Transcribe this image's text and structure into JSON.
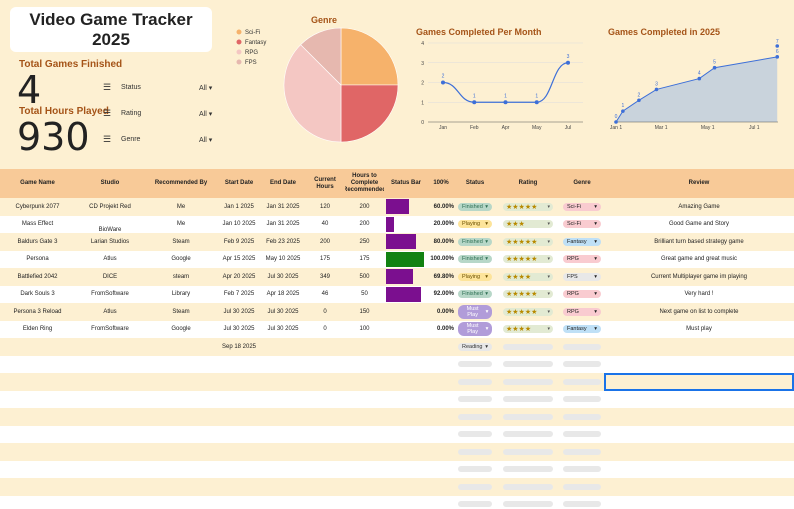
{
  "title": {
    "line1": "Video Game Tracker",
    "line2": "2025"
  },
  "stats": {
    "completed_label": "Total Games Finished",
    "completed_value": "4",
    "hours_label": "Total Hours Played",
    "hours_value": "930"
  },
  "filters": [
    {
      "label": "Status",
      "value": "All"
    },
    {
      "label": "Rating",
      "value": "All"
    },
    {
      "label": "Genre",
      "value": "All"
    }
  ],
  "genre_chart": {
    "title": "Genre",
    "legend": [
      {
        "name": "Sci-Fi",
        "color": "#f6b26b"
      },
      {
        "name": "Fantasy",
        "color": "#e06666"
      },
      {
        "name": "RPG",
        "color": "#f4c7c3"
      },
      {
        "name": "FPS",
        "color": "#e6b8af"
      }
    ]
  },
  "chart_data": [
    {
      "type": "pie",
      "title": "Genre",
      "categories": [
        "Sci-Fi",
        "Fantasy",
        "RPG",
        "FPS"
      ],
      "values": [
        2,
        2,
        3,
        1
      ],
      "colors": [
        "#f6b26b",
        "#e06666",
        "#f4c7c3",
        "#e6b8af"
      ]
    },
    {
      "type": "line",
      "title": "Games Completed Per Month",
      "x": [
        "Jan",
        "Feb",
        "Apr",
        "May",
        "Jul"
      ],
      "y": [
        2,
        1,
        1,
        1,
        3
      ],
      "ylim": [
        0,
        4
      ],
      "yticks": [
        "0",
        "1",
        "2",
        "3",
        "4"
      ],
      "color": "#3d6fd8"
    },
    {
      "type": "area",
      "title": "Games Completed in 2025",
      "x": [
        "Jan 1",
        "Jan 10",
        "Jan 31",
        "Feb 23",
        "Apr 20",
        "May 10",
        "Jul 31"
      ],
      "y": [
        0,
        1,
        2,
        3,
        4,
        5,
        6
      ],
      "labels": [
        "0",
        "1",
        "2",
        "3",
        "4",
        "5",
        "6"
      ],
      "xticks": [
        "Jan 1",
        "Mar 1",
        "May 1",
        "Jul 1"
      ],
      "extra_point_label": "7",
      "color": "#3d6fd8",
      "fill": "#c9d3dc"
    }
  ],
  "table": {
    "headers": [
      "Game Name",
      "Studio",
      "Recommended By",
      "Start Date",
      "End Date",
      "Current Hours",
      "Hours to Complete (Recommended)",
      "Status Bar",
      "100%",
      "Status",
      "Rating",
      "Genre",
      "Review"
    ],
    "rows": [
      {
        "name": "Cyberpunk 2077",
        "studio": "CD Projekt Red",
        "rec": "Me",
        "start": "Jan 1 2025",
        "end": "Jan 31 2025",
        "cur": "120",
        "total": "200",
        "bar": 0.6,
        "barcolor": "#7b0f8f",
        "pct": "60.00%",
        "status": "Finished",
        "rating": "★★★★★",
        "genre": "Sci-Fi",
        "review": "Amazing Game"
      },
      {
        "name": "Mass Effect",
        "studio": "BioWare",
        "rec": "Me",
        "start": "Jan 10 2025",
        "end": "Jan 31 2025",
        "cur": "40",
        "total": "200",
        "bar": 0.2,
        "barcolor": "#7b0f8f",
        "pct": "20.00%",
        "status": "Playing",
        "rating": "★★★",
        "genre": "Sci-Fi",
        "review": "Good Game and Story"
      },
      {
        "name": "Baldurs Gate 3",
        "studio": "Larian Studios",
        "rec": "Steam",
        "start": "Feb 9 2025",
        "end": "Feb 23 2025",
        "cur": "200",
        "total": "250",
        "bar": 0.8,
        "barcolor": "#7b0f8f",
        "pct": "80.00%",
        "status": "Finished",
        "rating": "★★★★★",
        "genre": "Fantasy",
        "review": "Brilliant turn based strategy game"
      },
      {
        "name": "Persona",
        "studio": "Atlus",
        "rec": "Google",
        "start": "Apr 15 2025",
        "end": "May 10 2025",
        "cur": "175",
        "total": "175",
        "bar": 1.0,
        "barcolor": "#128212",
        "pct": "100.00%",
        "status": "Finished",
        "rating": "★★★★★",
        "genre": "RPG",
        "review": "Great game and great music"
      },
      {
        "name": "Battlefied 2042",
        "studio": "DICE",
        "rec": "steam",
        "start": "Apr 20 2025",
        "end": "Jul 30 2025",
        "cur": "349",
        "total": "500",
        "bar": 0.698,
        "barcolor": "#7b0f8f",
        "pct": "69.80%",
        "status": "Playing",
        "rating": "★★★★",
        "genre": "FPS",
        "review": "Current Multiplayer game im playing"
      },
      {
        "name": "Dark Souls 3",
        "studio": "FromSoftware",
        "rec": "Library",
        "start": "Feb 7 2025",
        "end": "Apr 18 2025",
        "cur": "46",
        "total": "50",
        "bar": 0.92,
        "barcolor": "#7b0f8f",
        "pct": "92.00%",
        "status": "Finished",
        "rating": "★★★★★",
        "genre": "RPG",
        "review": "Very hard !"
      },
      {
        "name": "Persona 3 Reload",
        "studio": "Atlus",
        "rec": "Steam",
        "start": "Jul 30 2025",
        "end": "Jul 30 2025",
        "cur": "0",
        "total": "150",
        "bar": 0,
        "barcolor": "#7b0f8f",
        "pct": "0.00%",
        "status": "Must Play",
        "rating": "★★★★★",
        "genre": "RPG",
        "review": "Next game on list to complete"
      },
      {
        "name": "Elden Ring",
        "studio": "FromSoftware",
        "rec": "Google",
        "start": "Jul 30 2025",
        "end": "Jul 30 2025",
        "cur": "0",
        "total": "100",
        "bar": 0,
        "barcolor": "#7b0f8f",
        "pct": "0.00%",
        "status": "Must Play",
        "rating": "★★★★",
        "genre": "Fantasy",
        "review": "Must play"
      },
      {
        "name": "",
        "studio": "",
        "rec": "",
        "start": "Sep 18 2025",
        "end": "",
        "cur": "",
        "total": "",
        "bar": 0,
        "pct": "",
        "status": "Reading",
        "rating": "",
        "genre": "",
        "review": ""
      }
    ],
    "empty_rows": 9
  },
  "colors": {
    "status": {
      "Finished": "#b7d7c8",
      "Playing": "#fde49a",
      "Must Play": "#b19cd9",
      "Reading": "#e8e8e8"
    },
    "genre": {
      "Sci-Fi": "#f9cbd0",
      "Fantasy": "#bfe0f6",
      "RPG": "#f9cbd0",
      "FPS": "#e8e8e8"
    },
    "status_text": {
      "Finished": "#2c6e52",
      "Playing": "#6b4f00",
      "Must Play": "#fff",
      "Reading": "#333"
    }
  }
}
